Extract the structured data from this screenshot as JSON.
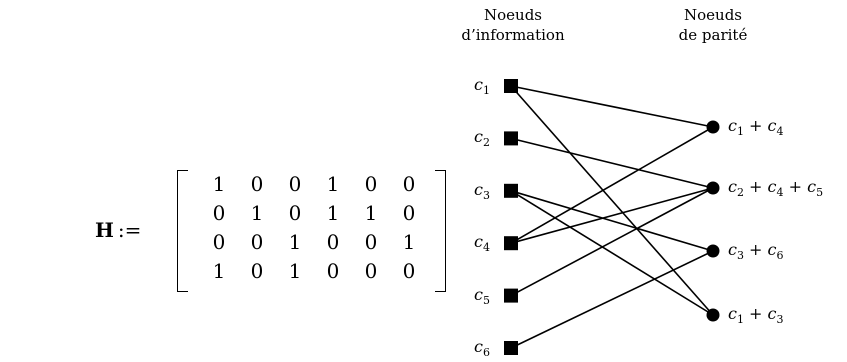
{
  "matrix": {
    "symbol": "H",
    "assign": ":=",
    "rows": [
      [
        "1",
        "0",
        "0",
        "1",
        "0",
        "0"
      ],
      [
        "0",
        "1",
        "0",
        "1",
        "1",
        "0"
      ],
      [
        "0",
        "0",
        "1",
        "0",
        "0",
        "1"
      ],
      [
        "1",
        "0",
        "1",
        "0",
        "0",
        "0"
      ]
    ]
  },
  "graph": {
    "info_title": [
      "Noeuds",
      "d’information"
    ],
    "parity_title": [
      "Noeuds",
      "de parité"
    ],
    "info_nodes": [
      {
        "base": "c",
        "sub": "1"
      },
      {
        "base": "c",
        "sub": "2"
      },
      {
        "base": "c",
        "sub": "3"
      },
      {
        "base": "c",
        "sub": "4"
      },
      {
        "base": "c",
        "sub": "5"
      },
      {
        "base": "c",
        "sub": "6"
      }
    ],
    "parity_nodes": [
      {
        "label": "c1 + c4",
        "terms": [
          [
            "c",
            "1"
          ],
          [
            "c",
            "4"
          ]
        ]
      },
      {
        "label": "c2 + c4 + c5",
        "terms": [
          [
            "c",
            "2"
          ],
          [
            "c",
            "4"
          ],
          [
            "c",
            "5"
          ]
        ]
      },
      {
        "label": "c3 + c6",
        "terms": [
          [
            "c",
            "3"
          ],
          [
            "c",
            "6"
          ]
        ]
      },
      {
        "label": "c1 + c3",
        "terms": [
          [
            "c",
            "1"
          ],
          [
            "c",
            "3"
          ]
        ]
      }
    ],
    "edges": [
      [
        1,
        1
      ],
      [
        1,
        4
      ],
      [
        2,
        2
      ],
      [
        3,
        3
      ],
      [
        3,
        4
      ],
      [
        4,
        1
      ],
      [
        4,
        2
      ],
      [
        5,
        2
      ],
      [
        6,
        3
      ]
    ]
  }
}
